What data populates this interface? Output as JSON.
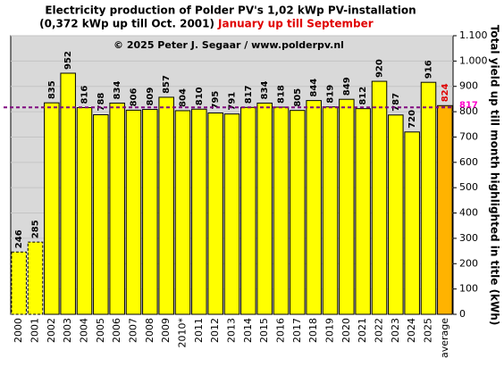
{
  "chart_data": {
    "type": "bar",
    "title": "Electricity production  of Polder  PV's  1,02 kWp PV-installation",
    "subtitle": "(0,372 kWp up till Oct. 2001)",
    "subtitle_highlight": "January up till September",
    "annotation": "© 2025 Peter J. Segaar / www.polderpv.nl",
    "y_axis_label": "Total yield up till month highlighted in title (kWh)",
    "categories": [
      "2000",
      "2001",
      "2002",
      "2003",
      "2004",
      "2005",
      "2006",
      "2007",
      "2008",
      "2009",
      "2010*",
      "2011",
      "2012",
      "2013",
      "2014",
      "2015",
      "2016",
      "2017",
      "2018",
      "2019",
      "2020",
      "2021",
      "2022",
      "2023",
      "2024",
      "2025",
      "average"
    ],
    "values": [
      246,
      285,
      835,
      952,
      816,
      788,
      834,
      806,
      809,
      857,
      804,
      810,
      795,
      791,
      817,
      834,
      818,
      805,
      844,
      819,
      849,
      812,
      920,
      787,
      720,
      916,
      824
    ],
    "colors": [
      "#ffff00",
      "#ffff00",
      "#ffff00",
      "#ffff00",
      "#ffff00",
      "#ffff00",
      "#ffff00",
      "#ffff00",
      "#ffff00",
      "#ffff00",
      "#ffff00",
      "#ffff00",
      "#ffff00",
      "#ffff00",
      "#ffff00",
      "#ffff00",
      "#ffff00",
      "#ffff00",
      "#ffff00",
      "#ffff00",
      "#ffff00",
      "#ffff00",
      "#ffff00",
      "#ffff00",
      "#ffff00",
      "#ffff00",
      "#ffb300"
    ],
    "dashed": [
      true,
      true,
      false,
      false,
      false,
      false,
      false,
      false,
      false,
      false,
      false,
      false,
      false,
      false,
      false,
      false,
      false,
      false,
      false,
      false,
      false,
      false,
      false,
      false,
      false,
      false,
      false
    ],
    "reference_line": 817,
    "ylim": [
      0,
      1100
    ],
    "yticks": [
      0,
      100,
      200,
      300,
      400,
      500,
      600,
      700,
      800,
      900,
      {
        "value": 1000,
        "label": "1.000"
      },
      {
        "value": 1100,
        "label": "1.100"
      }
    ],
    "grid": true,
    "axis_side": "right"
  }
}
